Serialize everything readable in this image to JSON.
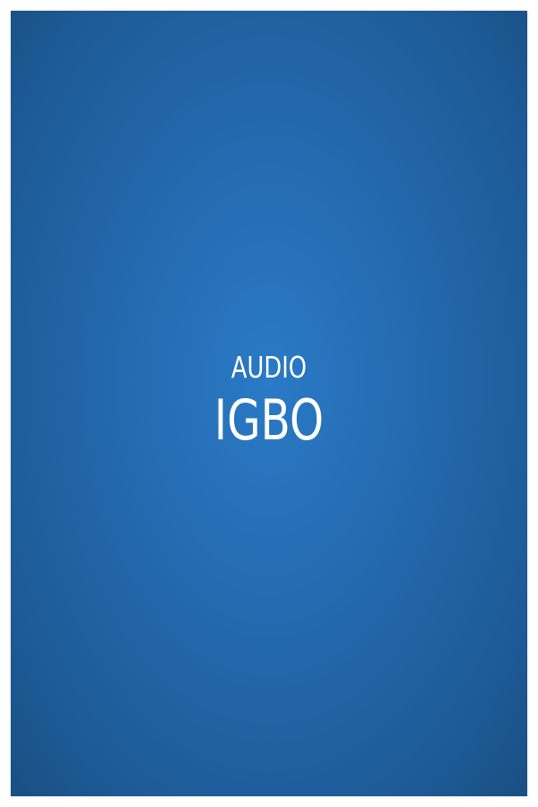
{
  "cover": {
    "subtitle": "AUDIO",
    "title": "IGBO"
  },
  "colors": {
    "background_center": "#2a7ac6",
    "background_edge": "#1a4f82",
    "text": "#ffffff"
  }
}
